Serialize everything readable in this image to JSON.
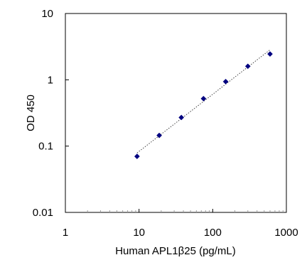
{
  "chart_data": {
    "type": "scatter",
    "title": "",
    "xlabel": "Human APL1β25 (pg/mL)",
    "ylabel": "OD 450",
    "x_scale": "log",
    "y_scale": "log",
    "xlim": [
      1,
      1000
    ],
    "ylim": [
      0.01,
      10
    ],
    "x_ticks": [
      1,
      10,
      100,
      1000
    ],
    "x_tick_labels": [
      "1",
      "10",
      "100",
      "1000"
    ],
    "y_ticks": [
      0.01,
      0.1,
      1,
      10
    ],
    "y_tick_labels": [
      "0.01",
      "0.1",
      "1",
      "10"
    ],
    "grid": false,
    "legend": "none",
    "series": [
      {
        "marker": "diamond",
        "color": "#000080",
        "trendline": "power",
        "trendline_style": "dotted",
        "points": [
          {
            "x": 9.4,
            "y": 0.07
          },
          {
            "x": 18.8,
            "y": 0.145
          },
          {
            "x": 37.5,
            "y": 0.27
          },
          {
            "x": 75,
            "y": 0.52
          },
          {
            "x": 150,
            "y": 0.94
          },
          {
            "x": 300,
            "y": 1.6
          },
          {
            "x": 600,
            "y": 2.45
          }
        ]
      }
    ]
  }
}
